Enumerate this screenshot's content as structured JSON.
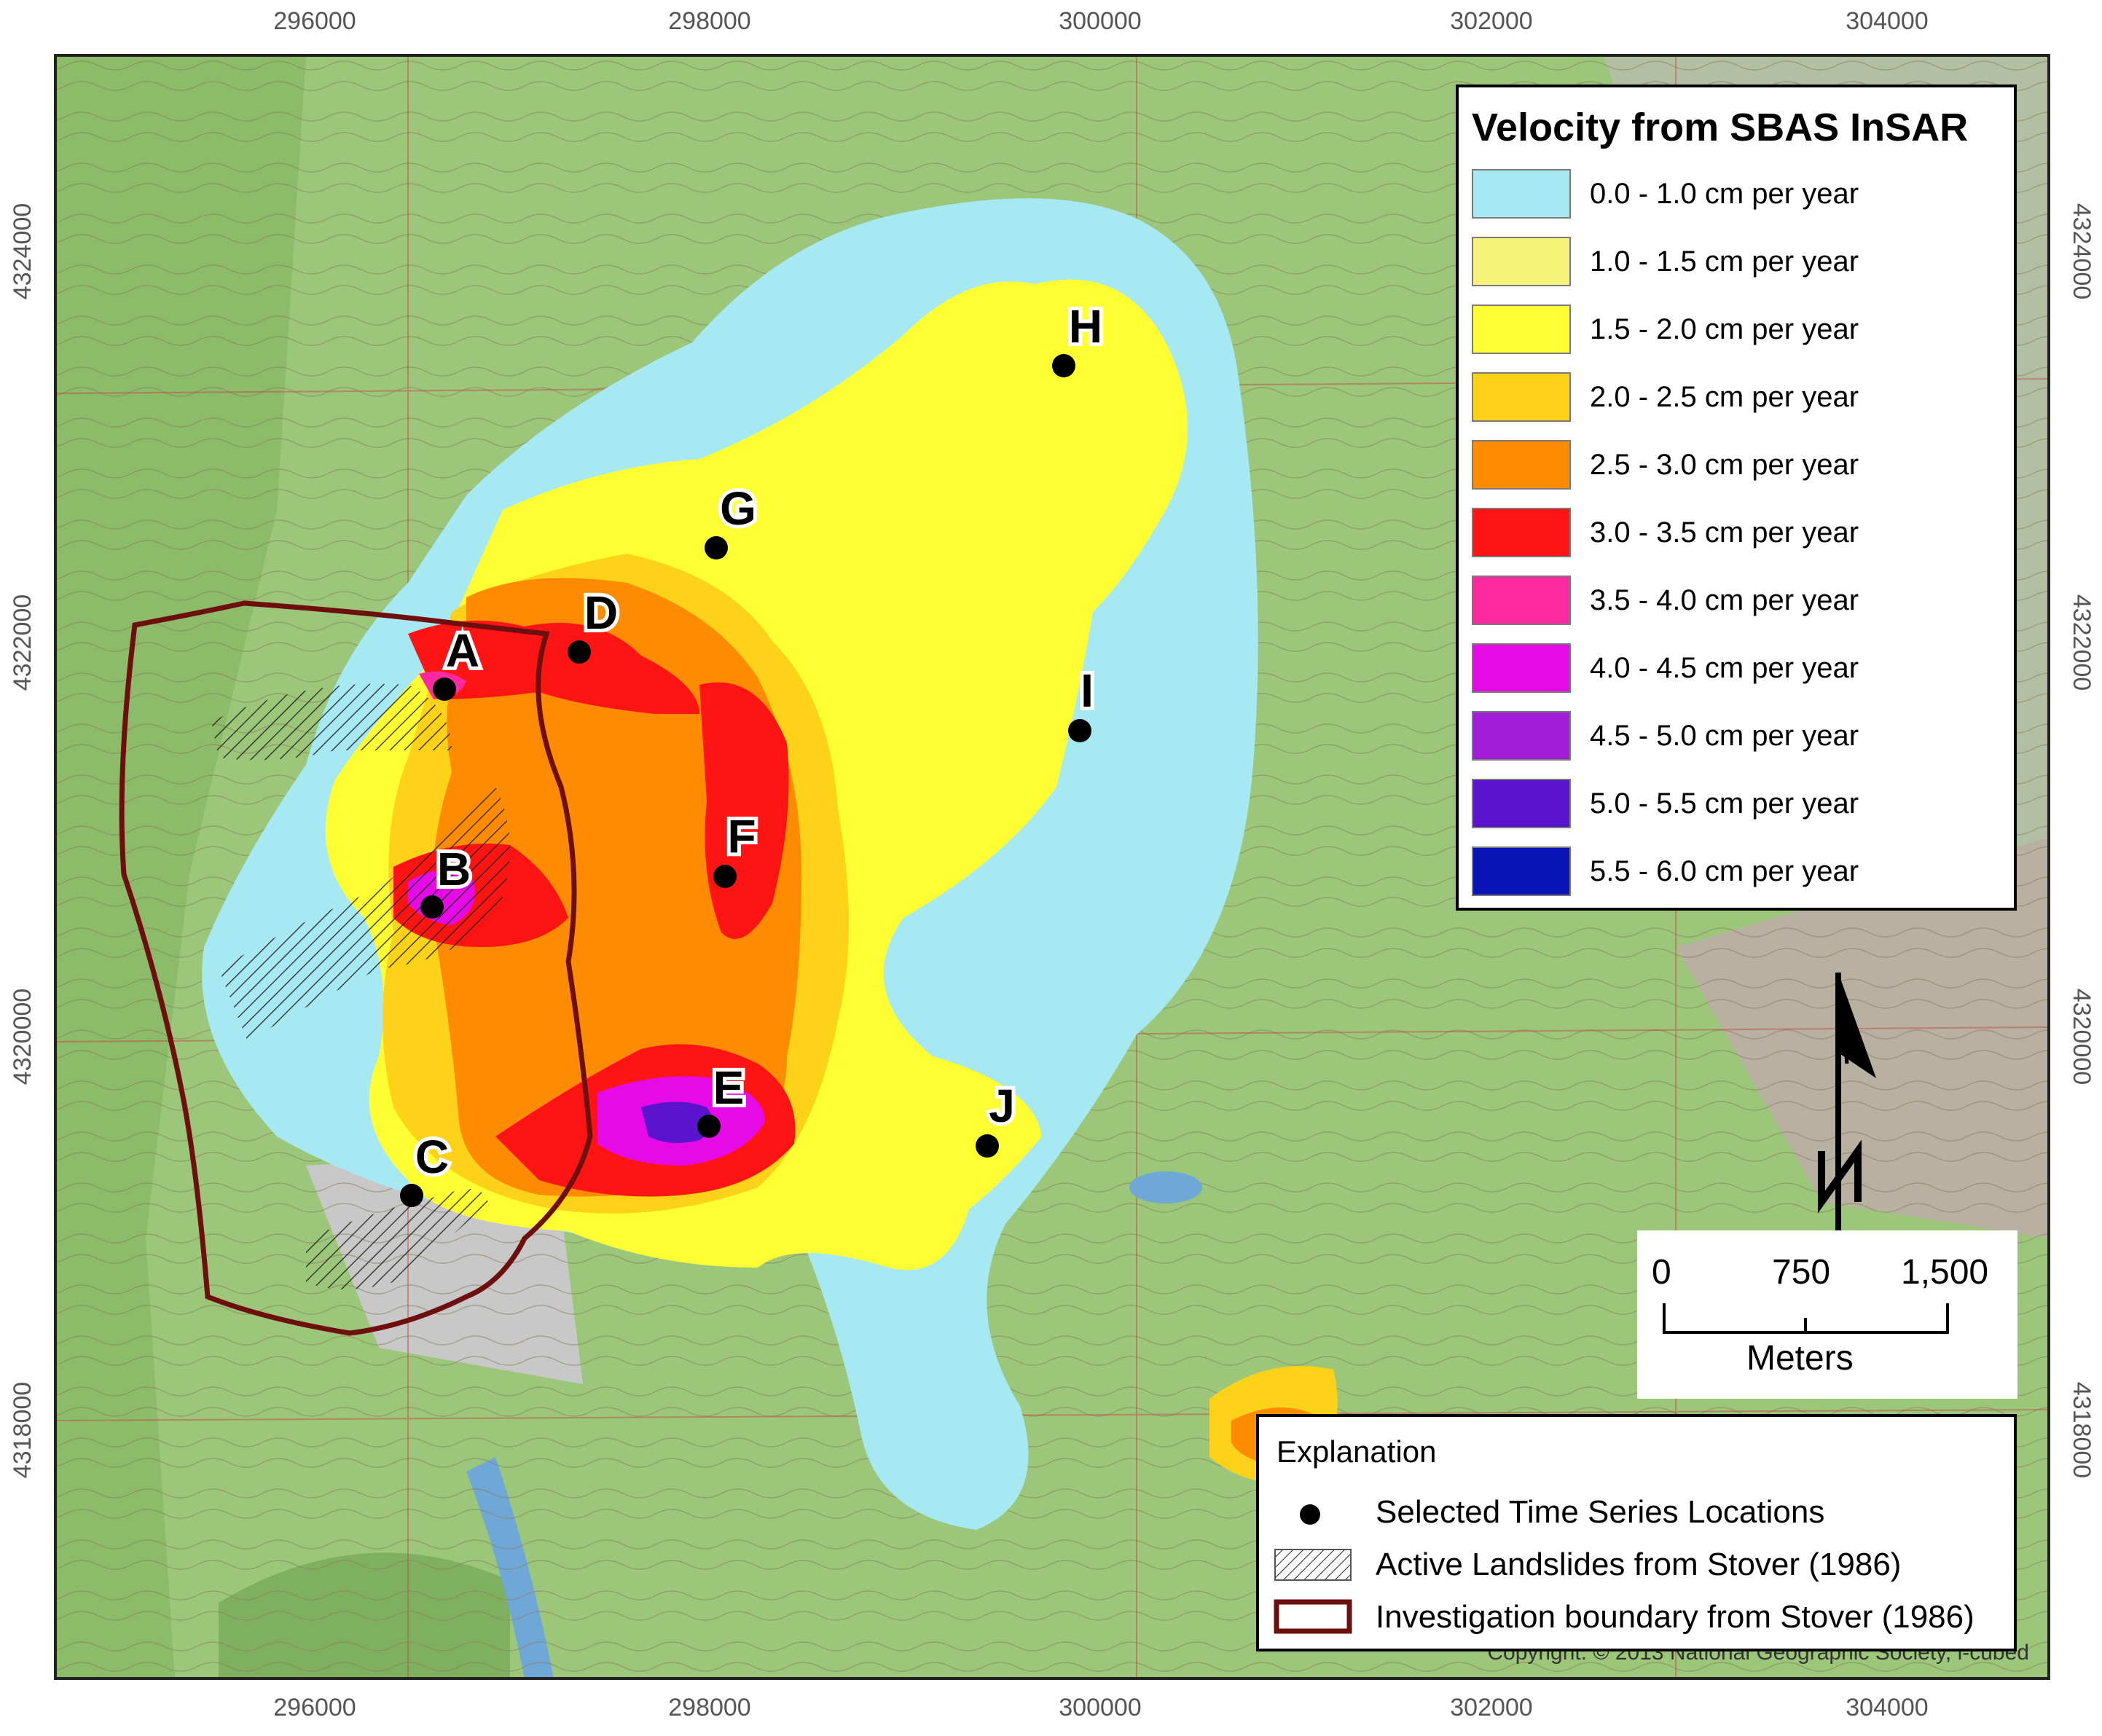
{
  "axes": {
    "x_ticks": [
      "296000",
      "298000",
      "300000",
      "302000",
      "304000"
    ],
    "y_ticks": [
      "4324000",
      "4322000",
      "4320000",
      "4318000"
    ]
  },
  "legend": {
    "title": "Velocity from SBAS InSAR",
    "classes": [
      {
        "label": "0.0 - 1.0 cm per year",
        "color": "#a7e9f3"
      },
      {
        "label": "1.0 - 1.5 cm per year",
        "color": "#f7f27a"
      },
      {
        "label": "1.5 - 2.0 cm per year",
        "color": "#ffff33"
      },
      {
        "label": "2.0 - 2.5 cm per year",
        "color": "#ffd21a"
      },
      {
        "label": "2.5 - 3.0 cm per year",
        "color": "#ff8c00"
      },
      {
        "label": "3.0 - 3.5 cm per year",
        "color": "#ff1414"
      },
      {
        "label": "3.5 - 4.0 cm per year",
        "color": "#ff2aa0"
      },
      {
        "label": "4.0 - 4.5 cm per year",
        "color": "#e60ae6"
      },
      {
        "label": "4.5 - 5.0 cm per year",
        "color": "#a01ed7"
      },
      {
        "label": "5.0 - 5.5 cm per year",
        "color": "#5a14cd"
      },
      {
        "label": "5.5 - 6.0 cm per year",
        "color": "#0a14b4"
      }
    ]
  },
  "points": [
    {
      "label": "A"
    },
    {
      "label": "B"
    },
    {
      "label": "C"
    },
    {
      "label": "D"
    },
    {
      "label": "E"
    },
    {
      "label": "F"
    },
    {
      "label": "G"
    },
    {
      "label": "H"
    },
    {
      "label": "I"
    },
    {
      "label": "J"
    }
  ],
  "scale_bar": {
    "tick_labels": [
      "0",
      "750",
      "1,500"
    ],
    "unit": "Meters"
  },
  "explanation": {
    "title": "Explanation",
    "items": [
      {
        "label": "Selected Time Series Locations",
        "symbol": "dot-icon"
      },
      {
        "label": "Active Landslides from Stover (1986)",
        "symbol": "hatch-icon"
      },
      {
        "label": "Investigation boundary from Stover (1986)",
        "symbol": "boundary-icon"
      }
    ]
  },
  "copyright": "Copyright: © 2013 National Geographic Society, i-cubed",
  "colors": {
    "boundary": "#6e0f0f",
    "terrain": "#8fbf6e"
  }
}
